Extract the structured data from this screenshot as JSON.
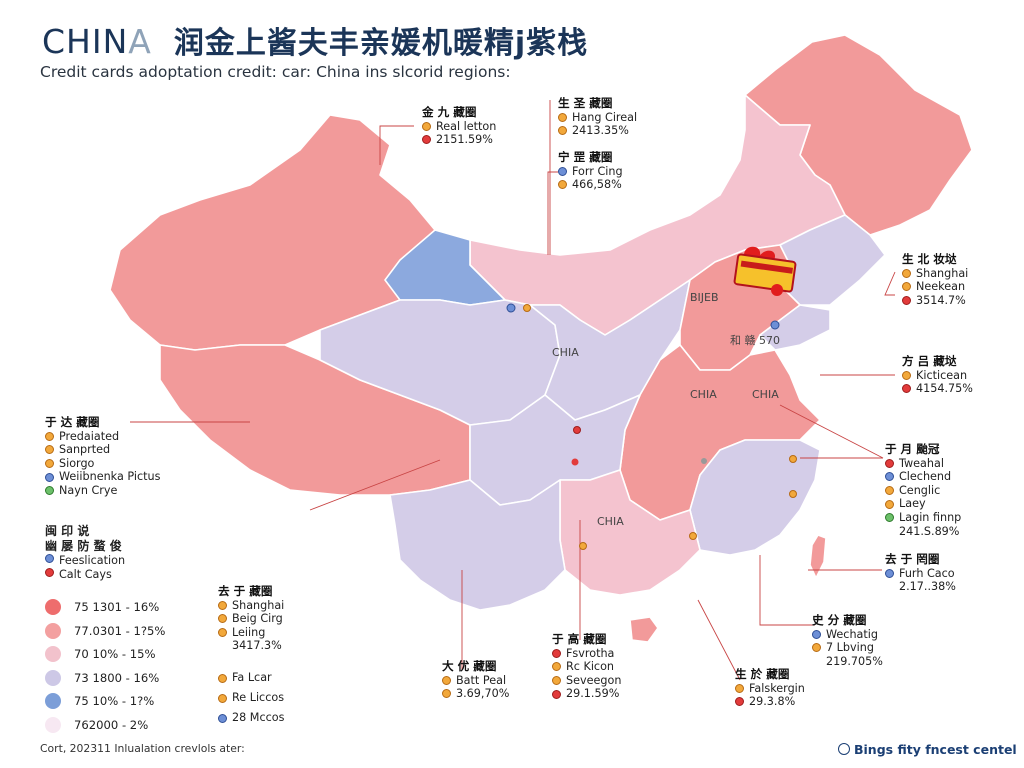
{
  "title": {
    "main_strong": "CHIN",
    "main_fade": "A",
    "cn": "润金上酱夫丰亲媛机暖精j紫栈"
  },
  "subtitle": "Credit cards adoptation credit: car: China ins slcorid regions:",
  "map_labels": [
    {
      "id": "ml1",
      "text": "CHIA"
    },
    {
      "id": "ml2",
      "text": "CHIA"
    },
    {
      "id": "ml3",
      "text": "CHIA"
    },
    {
      "id": "ml4",
      "text": "CHIA"
    },
    {
      "id": "ml5",
      "text": "BIJEB"
    },
    {
      "id": "ml6",
      "text": "和 赣 570"
    }
  ],
  "callouts": {
    "northwest": {
      "head": "金 九 藏圈",
      "rows": [
        {
          "icon": "o",
          "text": "Real letton"
        },
        {
          "icon": "r",
          "text": "2151.59%"
        }
      ]
    },
    "north1": {
      "head": "生 圣 藏圈",
      "rows": [
        {
          "icon": "o",
          "text": "Hang Cireal"
        },
        {
          "icon": "o",
          "text": "2413.35%"
        }
      ]
    },
    "north2": {
      "head": "宁 罡 藏圈",
      "rows": [
        {
          "icon": "b",
          "text": "Forr Cing"
        },
        {
          "icon": "o",
          "text": "466,58%"
        }
      ]
    },
    "shanghai": {
      "head": "生 北 妆垯",
      "rows": [
        {
          "icon": "o",
          "text": "Shanghai"
        },
        {
          "icon": "o",
          "text": "Neekean"
        },
        {
          "icon": "r",
          "text": "3514.7%"
        }
      ]
    },
    "east1": {
      "head": "方 吕 藏垯",
      "rows": [
        {
          "icon": "o",
          "text": "Kicticean"
        },
        {
          "icon": "r",
          "text": "4154.75%"
        }
      ]
    },
    "east2": {
      "head": "于 月 颱冠",
      "rows": [
        {
          "icon": "r",
          "text": "Tweahal"
        },
        {
          "icon": "b",
          "text": "Clechend"
        },
        {
          "icon": "o",
          "text": "Cenglic"
        },
        {
          "icon": "o",
          "text": "Laey"
        },
        {
          "icon": "g",
          "text": "Lagin finnp"
        },
        {
          "icon": "none",
          "text": "241.S.89%"
        }
      ]
    },
    "southeast": {
      "head": "去 于 罔圈",
      "rows": [
        {
          "icon": "b",
          "text": "Furh Caco"
        },
        {
          "icon": "none",
          "text": "2.17..38%"
        }
      ]
    },
    "south1": {
      "head": "史 分 藏圈",
      "rows": [
        {
          "icon": "b",
          "text": "Wechatig"
        },
        {
          "icon": "o",
          "text": "7 Lbving"
        },
        {
          "icon": "none",
          "text": "219.705%"
        }
      ]
    },
    "south2": {
      "head": "生 於 藏圈",
      "rows": [
        {
          "icon": "o",
          "text": "Falskergin"
        },
        {
          "icon": "r",
          "text": "29.3.8%"
        }
      ]
    },
    "south3": {
      "head": "于 高 藏圈",
      "rows": [
        {
          "icon": "r",
          "text": "Fsvrotha"
        },
        {
          "icon": "o",
          "text": "Rc Kicon"
        },
        {
          "icon": "o",
          "text": "Seveegon"
        },
        {
          "icon": "r",
          "text": "29.1.59%"
        }
      ]
    },
    "southwest": {
      "head": "大 优 藏圈",
      "rows": [
        {
          "icon": "o",
          "text": "Batt Peal"
        },
        {
          "icon": "o",
          "text": "3.69,70%"
        }
      ]
    },
    "west": {
      "head": "于 达 藏圈",
      "rows": [
        {
          "icon": "o",
          "text": "Predaiated"
        },
        {
          "icon": "o",
          "text": "Sanprted"
        },
        {
          "icon": "o",
          "text": "Siorgo"
        },
        {
          "icon": "b",
          "text": "Weiibnenka Pictus"
        },
        {
          "icon": "g",
          "text": "Nayn Crye"
        }
      ]
    },
    "central_left": {
      "head": "去 于 藏圈",
      "rows": [
        {
          "icon": "o",
          "text": "Shanghai"
        },
        {
          "icon": "o",
          "text": "Beig Cirg"
        },
        {
          "icon": "o",
          "text": "Leiing"
        },
        {
          "icon": "none",
          "text": "3417.3%"
        }
      ]
    },
    "small_left": {
      "rows": [
        {
          "icon": "o",
          "text": "Fa Lcar"
        },
        {
          "icon": "o",
          "text": "Re Liccos"
        },
        {
          "icon": "b",
          "text": "28 Mccos"
        }
      ]
    }
  },
  "legend": {
    "head1": "闽 印 说",
    "head2": "幽 屡 防 蝥 俊",
    "type_rows": [
      {
        "icon": "b",
        "text": "Feeslication"
      },
      {
        "icon": "r",
        "text": "Calt Cays"
      }
    ],
    "ranges": [
      {
        "label": "75 1301 - 16%",
        "color": "#ee6d6d"
      },
      {
        "label": "77.0301 - 1?5%",
        "color": "#f3a0a0"
      },
      {
        "label": "70 10% - 15%",
        "color": "#f2c2cc"
      },
      {
        "label": "73 1800 - 16%",
        "color": "#cdc8e6"
      },
      {
        "label": "75 10% - 1?%",
        "color": "#7c9ed8"
      },
      {
        "label": "762000 - 2%",
        "color": "#f7e8f2"
      }
    ]
  },
  "footer": {
    "left": "Cort, 202311 Inlualation crevlols ater:",
    "right": "Bings fity fncest centel",
    "right_icon": "globe-icon"
  },
  "colors": {
    "deep_pink": "#f19292",
    "light_pink": "#f4c3cf",
    "lavender": "#d4cde8",
    "blue": "#8ca9de",
    "title": "#1b3558"
  }
}
